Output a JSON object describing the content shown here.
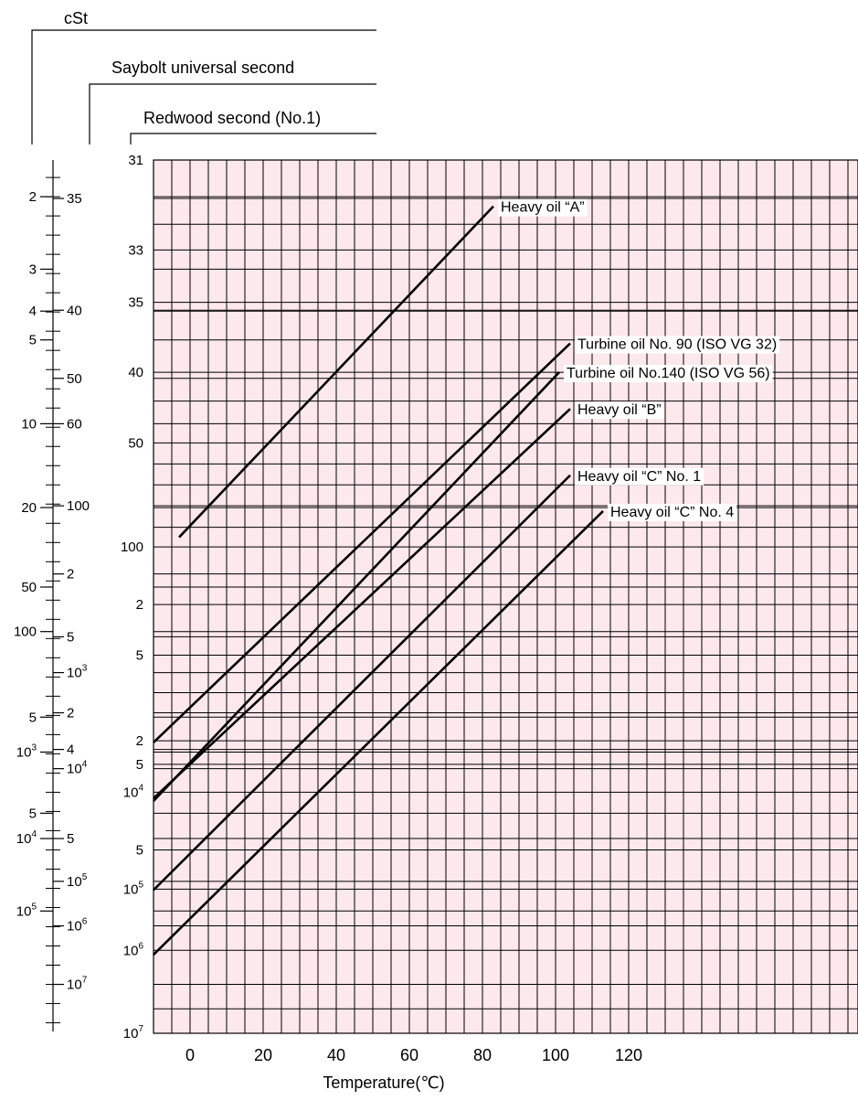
{
  "chart_data": {
    "type": "line",
    "xlabel": "Temperature(℃)",
    "x_ticks": [
      0,
      20,
      40,
      60,
      80,
      100,
      120
    ],
    "xlim": [
      -10,
      180
    ],
    "scale_headers": [
      "cSt",
      "Saybolt universal second",
      "Redwood second (No.1)"
    ],
    "y_scales": {
      "cst": [
        {
          "text": "2",
          "pos": 0.042
        },
        {
          "text": "3",
          "pos": 0.125
        },
        {
          "text": "4",
          "pos": 0.173
        },
        {
          "text": "5",
          "pos": 0.206
        },
        {
          "text": "10",
          "pos": 0.302
        },
        {
          "text": "20",
          "pos": 0.398
        },
        {
          "text": "50",
          "pos": 0.489
        },
        {
          "text": "100",
          "pos": 0.54
        },
        {
          "text": "5",
          "pos": 0.638
        },
        {
          "text": "10",
          "sup": "3",
          "pos": 0.678
        },
        {
          "text": "5",
          "pos": 0.748
        },
        {
          "text": "10",
          "sup": "4",
          "pos": 0.777
        },
        {
          "text": "10",
          "sup": "5",
          "pos": 0.86
        }
      ],
      "saybolt": [
        {
          "text": "35",
          "pos": 0.044
        },
        {
          "text": "40",
          "pos": 0.172
        },
        {
          "text": "50",
          "pos": 0.25
        },
        {
          "text": "60",
          "pos": 0.302
        },
        {
          "text": "100",
          "pos": 0.396
        },
        {
          "text": "2",
          "pos": 0.474
        },
        {
          "text": "5",
          "pos": 0.546
        },
        {
          "text": "10",
          "sup": "3",
          "pos": 0.587
        },
        {
          "text": "2",
          "pos": 0.633
        },
        {
          "text": "4",
          "pos": 0.675
        },
        {
          "text": "10",
          "sup": "4",
          "pos": 0.697
        },
        {
          "text": "5",
          "pos": 0.777
        },
        {
          "text": "10",
          "sup": "5",
          "pos": 0.826
        },
        {
          "text": "10",
          "sup": "6",
          "pos": 0.877
        },
        {
          "text": "10",
          "sup": "7",
          "pos": 0.944
        }
      ],
      "redwood": [
        {
          "text": "31",
          "pos": 0.0
        },
        {
          "text": "33",
          "pos": 0.103
        },
        {
          "text": "35",
          "pos": 0.163
        },
        {
          "text": "40",
          "pos": 0.243
        },
        {
          "text": "50",
          "pos": 0.324
        },
        {
          "text": "100",
          "pos": 0.443
        },
        {
          "text": "2",
          "pos": 0.509
        },
        {
          "text": "5",
          "pos": 0.567
        },
        {
          "text": "2",
          "pos": 0.665
        },
        {
          "text": "5",
          "pos": 0.692
        },
        {
          "text": "10",
          "sup": "4",
          "pos": 0.724
        },
        {
          "text": "5",
          "pos": 0.79
        },
        {
          "text": "10",
          "sup": "5",
          "pos": 0.835
        },
        {
          "text": "10",
          "sup": "6",
          "pos": 0.905
        },
        {
          "text": "10",
          "sup": "7",
          "pos": 1.0
        }
      ]
    },
    "series": [
      {
        "name": "Heavy oil “A”",
        "x": [
          -3,
          83
        ],
        "y": [
          0.432,
          0.053
        ]
      },
      {
        "name": "Turbine oil No. 90 (ISO VG 32)",
        "x": [
          -10,
          104
        ],
        "y": [
          0.667,
          0.21
        ]
      },
      {
        "name": "Turbine oil No.140 (ISO VG 56)",
        "x": [
          -10,
          101
        ],
        "y": [
          0.734,
          0.243
        ]
      },
      {
        "name": "Heavy oil “B”",
        "x": [
          -10,
          104
        ],
        "y": [
          0.731,
          0.285
        ]
      },
      {
        "name": "Heavy oil “C” No. 1",
        "x": [
          -10,
          104
        ],
        "y": [
          0.836,
          0.361
        ]
      },
      {
        "name": "Heavy oil “C” No. 4",
        "x": [
          -10,
          113
        ],
        "y": [
          0.91,
          0.402
        ]
      }
    ]
  }
}
